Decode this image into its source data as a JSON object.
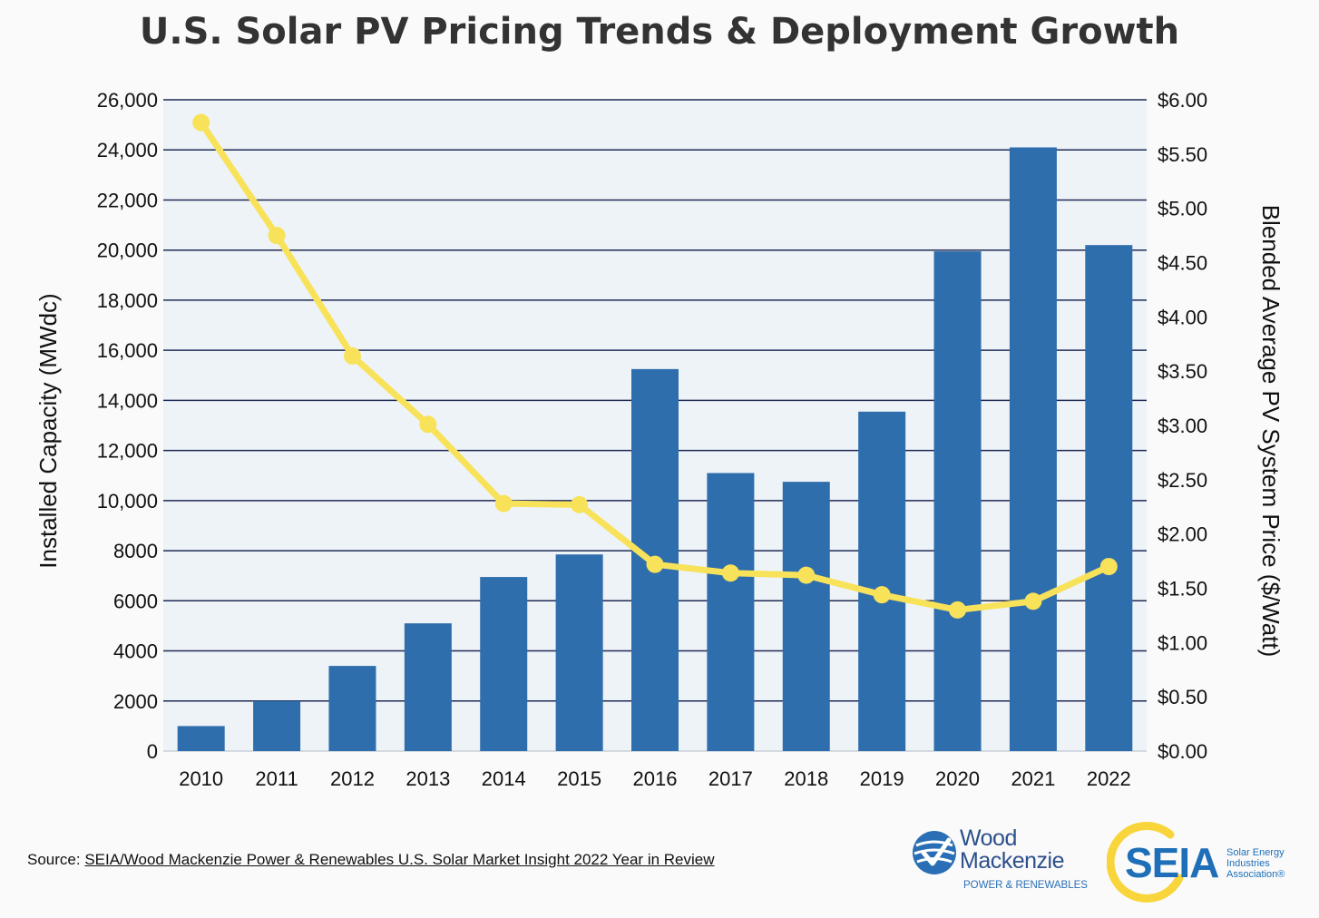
{
  "chart_data": {
    "type": "bar",
    "title": "U.S. Solar PV Pricing Trends & Deployment Growth",
    "categories": [
      "2010",
      "2011",
      "2012",
      "2013",
      "2014",
      "2015",
      "2016",
      "2017",
      "2018",
      "2019",
      "2020",
      "2021",
      "2022"
    ],
    "series": [
      {
        "type": "bar",
        "axis": "left",
        "color": "#2f6eac",
        "values": [
          1000,
          2000,
          3400,
          5100,
          6950,
          7850,
          15250,
          11100,
          10750,
          13550,
          19950,
          24100,
          20200
        ]
      },
      {
        "type": "line",
        "axis": "right",
        "color": "#f8e25a",
        "values": [
          5.79,
          4.75,
          3.64,
          3.01,
          2.28,
          2.27,
          1.72,
          1.64,
          1.62,
          1.44,
          1.3,
          1.38,
          1.7
        ]
      }
    ],
    "ylabel": "Installed Capacity (MWdc)",
    "ylabel_right": "Blended Average PV System Price ($/Watt)",
    "ylim": [
      0,
      26000
    ],
    "ylim_right": [
      0,
      6
    ],
    "yticks": [
      "0",
      "2000",
      "4000",
      "6000",
      "8000",
      "10,000",
      "12,000",
      "14,000",
      "16,000",
      "18,000",
      "20,000",
      "22,000",
      "24,000",
      "26,000"
    ],
    "yticks_right": [
      "$0.00",
      "$0.50",
      "$1.00",
      "$1.50",
      "$2.00",
      "$2.50",
      "$3.00",
      "$3.50",
      "$4.00",
      "$4.50",
      "$5.00",
      "$5.50",
      "$6.00"
    ],
    "grid": true,
    "plot_background": "#eef3f8",
    "gridline_color": "#1f2a55"
  },
  "source": {
    "prefix": "Source: ",
    "link_text": "SEIA/Wood Mackenzie Power & Renewables U.S. Solar Market Insight 2022 Year in Review"
  },
  "logos": {
    "wood_mackenzie": {
      "line1": "Wood",
      "line2": "Mackenzie",
      "subtitle": "POWER & RENEWABLES",
      "color": "#2d4f8b"
    },
    "seia": {
      "word": "SEIA",
      "subtitle": "Solar Energy\nIndustries\nAssociation®",
      "color": "#1e6fb8",
      "ring_color": "#f8d53a"
    }
  }
}
